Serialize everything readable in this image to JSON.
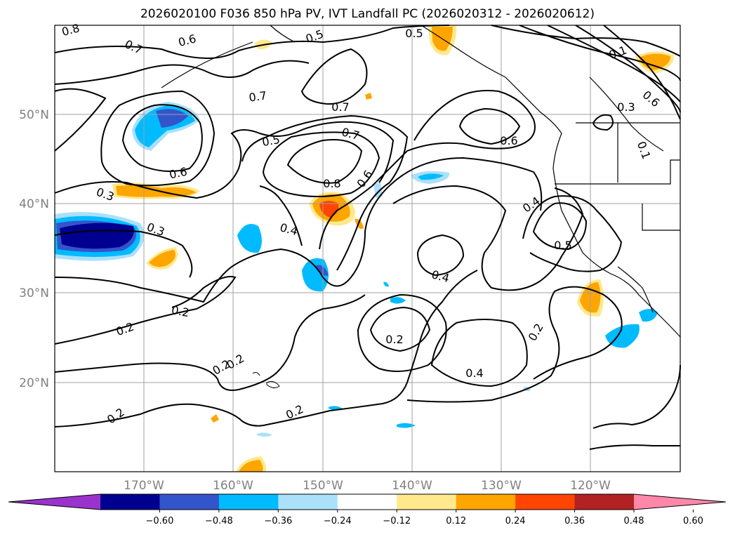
{
  "title": "2026020100 F036 850 hPa PV, IVT Landfall PC (2026020312 - 2026020612)",
  "chart_data": {
    "type": "map",
    "field_contours": "850 hPa PV",
    "field_shaded": "IVT Landfall PC",
    "lon_ticks": [
      "170°W",
      "160°W",
      "150°W",
      "140°W",
      "130°W",
      "120°W"
    ],
    "lat_ticks": [
      "50°N",
      "40°N",
      "30°N",
      "20°N"
    ],
    "contour_labels": [
      "0.8",
      "0.6",
      "0.7",
      "0.5",
      "0.5",
      "0.7",
      "0.7",
      "0.5",
      "0.7",
      "0.6",
      "0.6",
      "0.8",
      "0.6",
      "0.3",
      "0.3",
      "0.4",
      "0.4",
      "0.5",
      "0.4",
      "0.2",
      "0.2",
      "0.2",
      "0.2",
      "0.2",
      "0.2",
      "0.2",
      "0.4",
      "0.2",
      "0.3",
      "0.6",
      "0.1",
      "0.1"
    ],
    "colorbar": {
      "levels": [
        "−0.60",
        "−0.48",
        "−0.36",
        "−0.24",
        "−0.12",
        "0.12",
        "0.24",
        "0.36",
        "0.48",
        "0.60"
      ],
      "colors": [
        "#9933cc",
        "#000090",
        "#3355cc",
        "#00bbff",
        "#aae0fa",
        "#ffffff",
        "#ffe98c",
        "#ffa500",
        "#ff4500",
        "#b22222",
        "#ff88aa"
      ]
    }
  }
}
